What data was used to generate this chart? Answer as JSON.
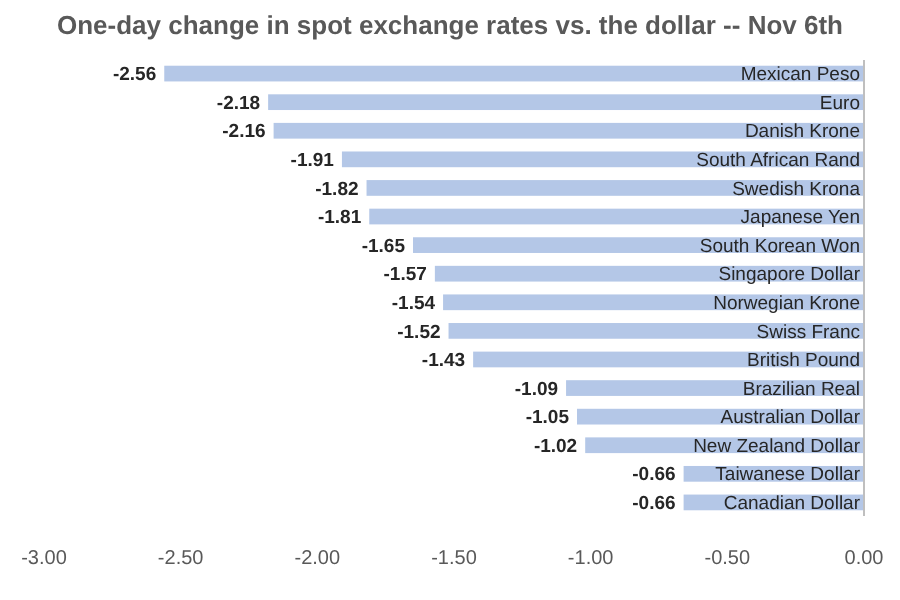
{
  "chart_data": {
    "type": "bar",
    "orientation": "horizontal",
    "title": "One-day change in spot exchange rates vs. the dollar -- Nov 6th",
    "categories": [
      "Mexican Peso",
      "Euro",
      "Danish Krone",
      "South African Rand",
      "Swedish Krona",
      "Japanese Yen",
      "South Korean Won",
      "Singapore Dollar",
      "Norwegian Krone",
      "Swiss Franc",
      "British Pound",
      "Brazilian Real",
      "Australian Dollar",
      "New Zealand Dollar",
      "Taiwanese Dollar",
      "Canadian Dollar"
    ],
    "values": [
      -2.56,
      -2.18,
      -2.16,
      -1.91,
      -1.82,
      -1.81,
      -1.65,
      -1.57,
      -1.54,
      -1.52,
      -1.43,
      -1.09,
      -1.05,
      -1.02,
      -0.66,
      -0.66
    ],
    "value_labels": [
      "-2.56",
      "-2.18",
      "-2.16",
      "-1.91",
      "-1.82",
      "-1.81",
      "-1.65",
      "-1.57",
      "-1.54",
      "-1.52",
      "-1.43",
      "-1.09",
      "-1.05",
      "-1.02",
      "-0.66",
      "-0.66"
    ],
    "color": "#b4c7e7",
    "xlim": [
      -3,
      0
    ],
    "xticks": [
      {
        "value": -3,
        "label": "-3.00"
      },
      {
        "value": -2.5,
        "label": "-2.50"
      },
      {
        "value": -2,
        "label": "-2.00"
      },
      {
        "value": -1.5,
        "label": "-1.50"
      },
      {
        "value": -1,
        "label": "-1.00"
      },
      {
        "value": -0.5,
        "label": "-0.50"
      },
      {
        "value": 0,
        "label": "0.00"
      }
    ],
    "grid": false
  }
}
